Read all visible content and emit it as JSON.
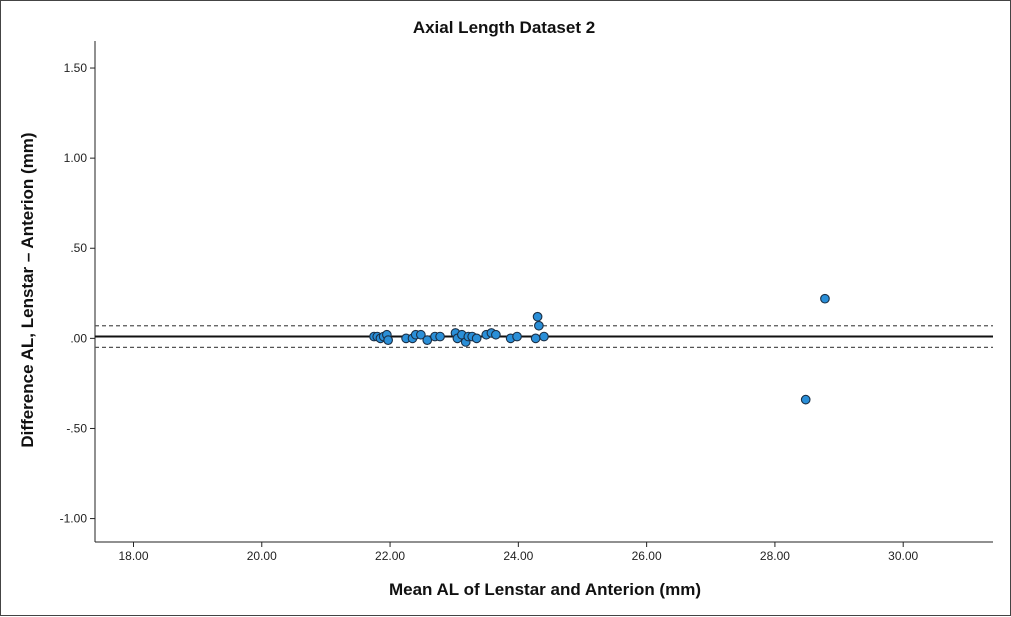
{
  "chart_data": {
    "type": "scatter",
    "title": "Axial Length Dataset 2",
    "xlabel": "Mean AL of Lenstar and Anterion (mm)",
    "ylabel": "Difference AL, Lenstar – Anterion (mm)",
    "xlim": [
      17.4,
      31.4
    ],
    "ylim": [
      -1.13,
      1.65
    ],
    "x_ticks": [
      18,
      20,
      22,
      24,
      26,
      28,
      30
    ],
    "x_tick_labels": [
      "18.00",
      "20.00",
      "22.00",
      "24.00",
      "26.00",
      "28.00",
      "30.00"
    ],
    "y_ticks": [
      1.5,
      1.0,
      0.5,
      0.0,
      -0.5,
      -1.0
    ],
    "y_tick_labels": [
      "1.50",
      "1.00",
      ".50",
      ".00",
      "-.50",
      "-1.00"
    ],
    "grid": false,
    "reference_lines": [
      {
        "kind": "mean",
        "style": "solid",
        "y": 0.01
      },
      {
        "kind": "upper_limit",
        "style": "dashed",
        "y": 0.07
      },
      {
        "kind": "lower_limit",
        "style": "dashed",
        "y": -0.05
      }
    ],
    "marker_color": "#2a8fd8",
    "marker_edge_color": "#1b2f45",
    "points": [
      {
        "x": 21.75,
        "y": 0.01
      },
      {
        "x": 21.8,
        "y": 0.01
      },
      {
        "x": 21.85,
        "y": 0.0
      },
      {
        "x": 21.9,
        "y": 0.01
      },
      {
        "x": 21.95,
        "y": 0.02
      },
      {
        "x": 21.97,
        "y": -0.01
      },
      {
        "x": 22.25,
        "y": 0.0
      },
      {
        "x": 22.35,
        "y": 0.0
      },
      {
        "x": 22.4,
        "y": 0.02
      },
      {
        "x": 22.48,
        "y": 0.02
      },
      {
        "x": 22.58,
        "y": -0.01
      },
      {
        "x": 22.7,
        "y": 0.01
      },
      {
        "x": 22.78,
        "y": 0.01
      },
      {
        "x": 23.02,
        "y": 0.03
      },
      {
        "x": 23.05,
        "y": 0.0
      },
      {
        "x": 23.12,
        "y": 0.02
      },
      {
        "x": 23.18,
        "y": -0.02
      },
      {
        "x": 23.22,
        "y": 0.01
      },
      {
        "x": 23.28,
        "y": 0.01
      },
      {
        "x": 23.35,
        "y": 0.0
      },
      {
        "x": 23.5,
        "y": 0.02
      },
      {
        "x": 23.58,
        "y": 0.03
      },
      {
        "x": 23.65,
        "y": 0.02
      },
      {
        "x": 23.88,
        "y": 0.0
      },
      {
        "x": 23.98,
        "y": 0.01
      },
      {
        "x": 24.27,
        "y": 0.0
      },
      {
        "x": 24.3,
        "y": 0.12
      },
      {
        "x": 24.32,
        "y": 0.07
      },
      {
        "x": 24.4,
        "y": 0.01
      },
      {
        "x": 28.48,
        "y": -0.34
      },
      {
        "x": 28.78,
        "y": 0.22
      }
    ]
  }
}
